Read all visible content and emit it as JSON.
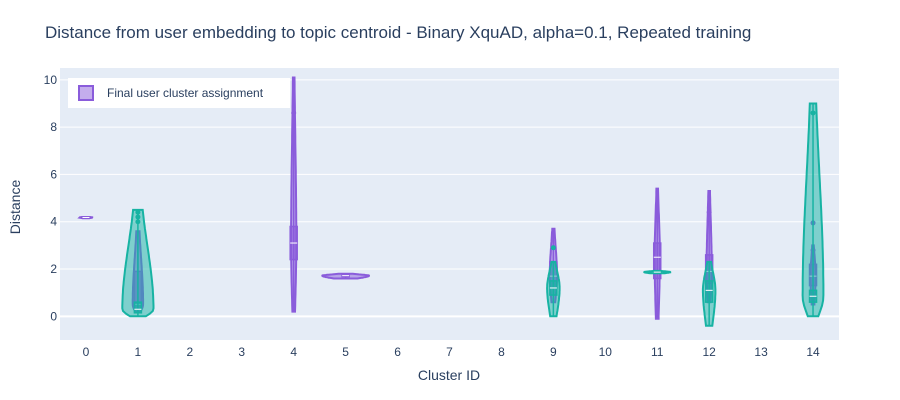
{
  "chart_data": {
    "type": "violin",
    "title": "Distance from user embedding to topic centroid - Binary XquAD, alpha=0.1, Repeated training",
    "xlabel": "Cluster ID",
    "ylabel": "Distance",
    "xlim": [
      -0.5,
      14.5
    ],
    "ylim": [
      -1,
      10.5
    ],
    "x_ticks": [
      0,
      1,
      2,
      3,
      4,
      5,
      6,
      7,
      8,
      9,
      10,
      11,
      12,
      13,
      14
    ],
    "y_ticks": [
      0,
      2,
      4,
      6,
      8,
      10
    ],
    "grid": true,
    "legend": {
      "position": "top-left",
      "entries": [
        "Final user cluster assignment"
      ]
    },
    "colors": {
      "purple": "#8a5cdb",
      "teal": "#17b3a3",
      "plot_bg": "#e5ecf6",
      "grid": "#ffffff",
      "text": "#2a3f5f"
    },
    "series": [
      {
        "name": "Final user cluster assignment",
        "color": "#8a5cdb",
        "violins": [
          {
            "cluster": 0,
            "min": 4.15,
            "max": 4.2,
            "q1": 4.16,
            "median": 4.18,
            "q3": 4.19,
            "width": 0.12,
            "outliers": []
          },
          {
            "cluster": 1,
            "min": 0.2,
            "max": 3.6,
            "q1": 0.3,
            "median": 0.5,
            "q3": 1.9,
            "width": 0.1,
            "outliers": []
          },
          {
            "cluster": 4,
            "min": 0.2,
            "max": 10.1,
            "q1": 2.4,
            "median": 3.1,
            "q3": 3.8,
            "width": 0.05,
            "outliers": [
              8.6
            ]
          },
          {
            "cluster": 5,
            "min": 1.6,
            "max": 1.8,
            "q1": 1.68,
            "median": 1.72,
            "q3": 1.76,
            "width": 0.45,
            "outliers": []
          },
          {
            "cluster": 9,
            "min": 0.6,
            "max": 3.7,
            "q1": 1.2,
            "median": 1.7,
            "q3": 2.3,
            "width": 0.07,
            "outliers": [
              2.9
            ]
          },
          {
            "cluster": 11,
            "min": -0.1,
            "max": 5.4,
            "q1": 1.6,
            "median": 2.5,
            "q3": 3.1,
            "width": 0.05,
            "outliers": []
          },
          {
            "cluster": 12,
            "min": 0.6,
            "max": 5.3,
            "q1": 1.4,
            "median": 1.9,
            "q3": 2.6,
            "width": 0.05,
            "outliers": [
              4.4
            ]
          },
          {
            "cluster": 14,
            "min": 0.5,
            "max": 3.0,
            "q1": 1.3,
            "median": 1.7,
            "q3": 2.2,
            "width": 0.05,
            "outliers": [
              3.95,
              2.8
            ]
          }
        ]
      },
      {
        "name": "",
        "color": "#17b3a3",
        "violins": [
          {
            "cluster": 1,
            "min": 0.0,
            "max": 4.5,
            "q1": 0.15,
            "median": 0.3,
            "q3": 0.6,
            "width": 0.3,
            "outliers": [
              4.4,
              4.2,
              4.0
            ]
          },
          {
            "cluster": 9,
            "min": 0.0,
            "max": 2.3,
            "q1": 0.9,
            "median": 1.2,
            "q3": 1.5,
            "width": 0.12,
            "outliers": [
              2.9
            ]
          },
          {
            "cluster": 11,
            "min": 1.82,
            "max": 1.92,
            "q1": 1.85,
            "median": 1.87,
            "q3": 1.89,
            "width": 0.25,
            "outliers": []
          },
          {
            "cluster": 12,
            "min": -0.4,
            "max": 2.3,
            "q1": 0.6,
            "median": 1.1,
            "q3": 1.5,
            "width": 0.12,
            "outliers": []
          },
          {
            "cluster": 14,
            "min": 0.0,
            "max": 9.0,
            "q1": 0.6,
            "median": 0.85,
            "q3": 1.1,
            "width": 0.2,
            "outliers": [
              8.6
            ]
          }
        ]
      }
    ]
  }
}
